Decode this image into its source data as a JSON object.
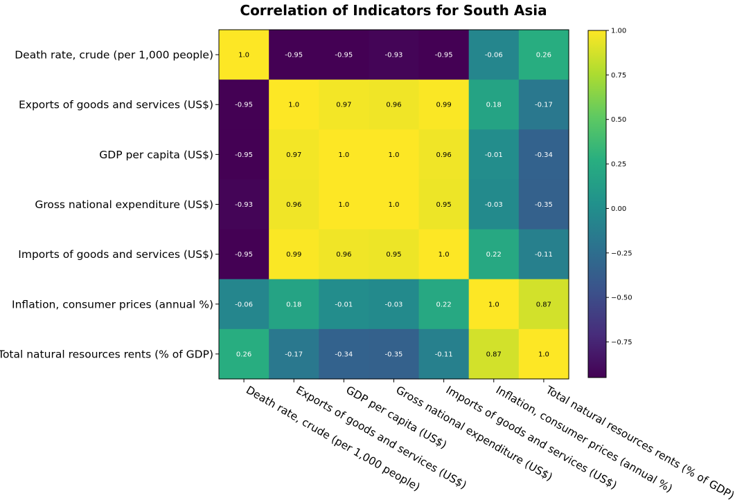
{
  "chart_data": {
    "type": "heatmap",
    "title": "Correlation of Indicators for South Asia",
    "labels": [
      "Death rate, crude (per 1,000 people)",
      "Exports of goods and services (US$)",
      "GDP per capita (US$)",
      "Gross national expenditure (US$)",
      "Imports of goods and services (US$)",
      "Inflation, consumer prices (annual %)",
      "Total natural resources rents (% of GDP)"
    ],
    "values": [
      [
        1.0,
        -0.95,
        -0.95,
        -0.93,
        -0.95,
        -0.06,
        0.26
      ],
      [
        -0.95,
        1.0,
        0.97,
        0.96,
        0.99,
        0.18,
        -0.17
      ],
      [
        -0.95,
        0.97,
        1.0,
        1.0,
        0.96,
        -0.01,
        -0.34
      ],
      [
        -0.93,
        0.96,
        1.0,
        1.0,
        0.95,
        -0.03,
        -0.35
      ],
      [
        -0.95,
        0.99,
        0.96,
        0.95,
        1.0,
        0.22,
        -0.11
      ],
      [
        -0.06,
        0.18,
        -0.01,
        -0.03,
        0.22,
        1.0,
        0.87
      ],
      [
        0.26,
        -0.17,
        -0.34,
        -0.35,
        -0.11,
        0.87,
        1.0
      ]
    ],
    "cell_text": [
      [
        "1.0",
        "-0.95",
        "-0.95",
        "-0.93",
        "-0.95",
        "-0.06",
        "0.26"
      ],
      [
        "-0.95",
        "1.0",
        "0.97",
        "0.96",
        "0.99",
        "0.18",
        "-0.17"
      ],
      [
        "-0.95",
        "0.97",
        "1.0",
        "1.0",
        "0.96",
        "-0.01",
        "-0.34"
      ],
      [
        "-0.93",
        "0.96",
        "1.0",
        "1.0",
        "0.95",
        "-0.03",
        "-0.35"
      ],
      [
        "-0.95",
        "0.99",
        "0.96",
        "0.95",
        "1.0",
        "0.22",
        "-0.11"
      ],
      [
        "-0.06",
        "0.18",
        "-0.01",
        "-0.03",
        "0.22",
        "1.0",
        "0.87"
      ],
      [
        "0.26",
        "-0.17",
        "-0.34",
        "-0.35",
        "-0.11",
        "0.87",
        "1.0"
      ]
    ],
    "colormap": "viridis",
    "color_range": [
      -0.95,
      1.0
    ],
    "colorbar": {
      "ticks": [
        1.0,
        0.75,
        0.5,
        0.25,
        0.0,
        -0.25,
        -0.5,
        -0.75
      ],
      "tick_labels": [
        "1.00",
        "0.75",
        "0.50",
        "0.25",
        "0.00",
        "−0.25",
        "−0.50",
        "−0.75"
      ]
    },
    "grid": false,
    "xtick_rotation": "-30 degrees"
  }
}
